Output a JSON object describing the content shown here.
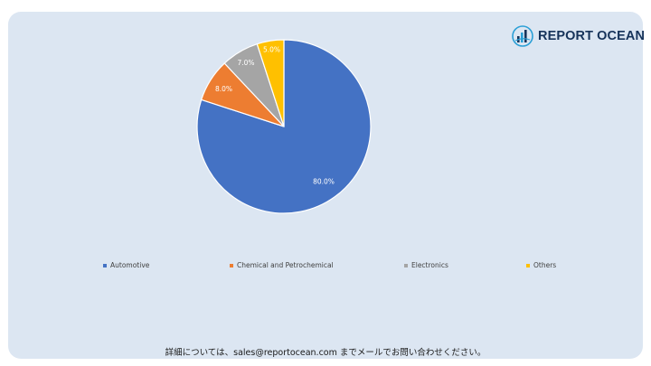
{
  "brand": {
    "name": "REPORT OCEAN",
    "icon": "report-ocean-logo-icon",
    "color": "#16335a"
  },
  "chart_data": {
    "type": "pie",
    "categories": [
      "Automotive",
      "Chemical and Petrochemical",
      "Electronics",
      "Others"
    ],
    "values": [
      80.0,
      8.0,
      7.0,
      5.0
    ],
    "labels": [
      "80.0%",
      "8.0%",
      "7.0%",
      "5.0%"
    ],
    "colors": [
      "#4472c4",
      "#ed7d31",
      "#a5a5a5",
      "#ffc000"
    ],
    "start_angle_deg": 0,
    "direction": "clockwise",
    "legend_position": "bottom"
  },
  "footer": {
    "text": "詳細については、sales@reportocean.com までメールでお問い合わせください。"
  }
}
